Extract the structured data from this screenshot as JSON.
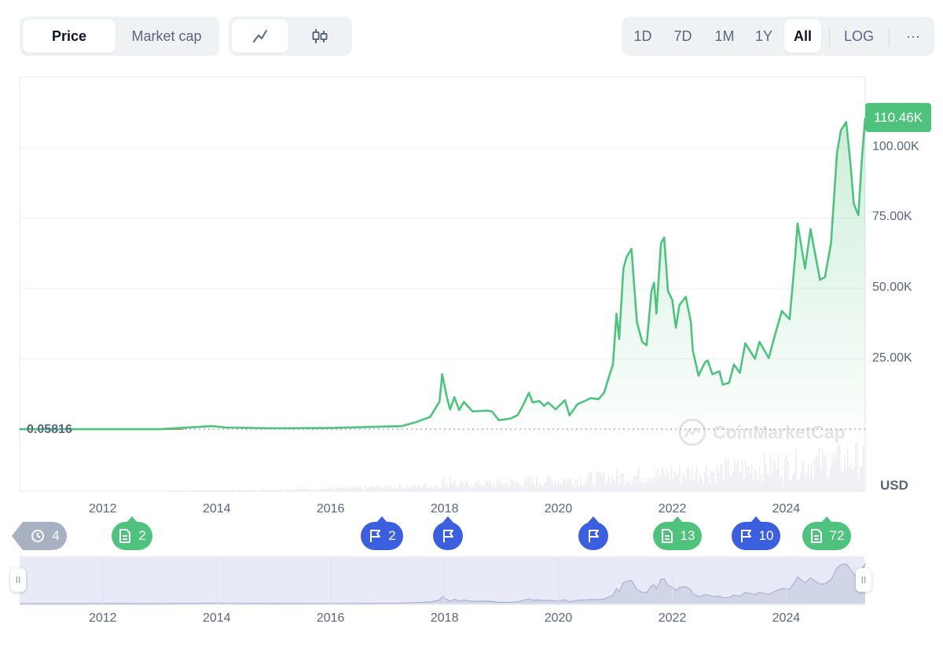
{
  "toolbar": {
    "tabs": [
      {
        "label": "Price",
        "active": true
      },
      {
        "label": "Market cap",
        "active": false
      }
    ],
    "chart_type_icons": [
      "line-chart-icon",
      "candlestick-icon"
    ],
    "ranges": [
      "1D",
      "7D",
      "1M",
      "1Y",
      "All"
    ],
    "active_range": "All",
    "log_label": "LOG",
    "more_label": "···"
  },
  "chart_data": {
    "type": "area",
    "currency_label": "USD",
    "x": [
      "2010-07-17",
      "2010-12-31",
      "2011-06-30",
      "2012-12-31",
      "2013-11-30",
      "2014-03-01",
      "2015-01-01",
      "2016-01-01",
      "2016-12-31",
      "2017-03-31",
      "2017-06-30",
      "2017-09-30",
      "2017-11-30",
      "2017-12-17",
      "2018-01-15",
      "2018-02-06",
      "2018-03-05",
      "2018-04-05",
      "2018-05-05",
      "2018-06-30",
      "2018-09-30",
      "2018-11-01",
      "2018-12-15",
      "2019-03-01",
      "2019-04-15",
      "2019-05-15",
      "2019-06-26",
      "2019-07-20",
      "2019-09-01",
      "2019-10-01",
      "2019-10-27",
      "2019-12-15",
      "2020-02-12",
      "2020-03-13",
      "2020-05-01",
      "2020-07-26",
      "2020-09-15",
      "2020-10-20",
      "2020-11-20",
      "2020-12-16",
      "2021-01-08",
      "2021-01-25",
      "2021-02-21",
      "2021-03-13",
      "2021-04-14",
      "2021-05-19",
      "2021-06-22",
      "2021-07-20",
      "2021-08-20",
      "2021-09-06",
      "2021-09-21",
      "2021-10-20",
      "2021-11-10",
      "2021-12-04",
      "2021-12-31",
      "2022-01-24",
      "2022-02-15",
      "2022-03-28",
      "2022-04-30",
      "2022-05-12",
      "2022-06-18",
      "2022-07-30",
      "2022-08-15",
      "2022-09-15",
      "2022-10-30",
      "2022-11-21",
      "2022-12-31",
      "2023-01-31",
      "2023-03-10",
      "2023-04-14",
      "2023-06-15",
      "2023-07-14",
      "2023-09-11",
      "2023-10-24",
      "2023-12-05",
      "2024-01-23",
      "2024-02-29",
      "2024-03-14",
      "2024-05-01",
      "2024-06-05",
      "2024-08-05",
      "2024-09-06",
      "2024-10-15",
      "2024-11-22",
      "2024-12-17",
      "2025-01-20",
      "2025-02-15",
      "2025-03-10",
      "2025-04-08",
      "2025-05-01",
      "2025-05-22"
    ],
    "series": [
      {
        "values": [
          0.05816,
          0.3,
          15,
          13,
          1100,
          600,
          320,
          430,
          960,
          1080,
          2500,
          4300,
          9800,
          19500,
          11500,
          7000,
          11400,
          6800,
          9700,
          6300,
          6600,
          6300,
          3200,
          3800,
          5000,
          8000,
          12900,
          9500,
          10000,
          8300,
          9500,
          7100,
          10300,
          4900,
          8800,
          11000,
          10700,
          12900,
          18500,
          23000,
          41000,
          32000,
          57000,
          61000,
          64000,
          38000,
          31000,
          29800,
          49000,
          52000,
          41000,
          66000,
          68000,
          49000,
          46000,
          36000,
          44000,
          47000,
          38000,
          28000,
          19000,
          23800,
          24400,
          19500,
          20500,
          15800,
          16500,
          23000,
          20000,
          30500,
          25000,
          31000,
          25200,
          34000,
          42000,
          39000,
          62000,
          73000,
          57000,
          71000,
          53000,
          54000,
          66000,
          98000,
          106000,
          109000,
          95000,
          80000,
          76000,
          96000,
          110460
        ]
      }
    ],
    "y_ticks": [
      {
        "value": 25000,
        "label": "25.00K"
      },
      {
        "value": 50000,
        "label": "50.00K"
      },
      {
        "value": 75000,
        "label": "75.00K"
      },
      {
        "value": 100000,
        "label": "100.00K"
      }
    ],
    "ylim": [
      -22000,
      125000
    ],
    "x_ticks": [
      "2012",
      "2014",
      "2016",
      "2018",
      "2020",
      "2022",
      "2024"
    ],
    "current_price_label": "110.46K",
    "start_price_label": "0.05816",
    "watermark": "CoinMarketCap",
    "line_color": "#4fc37e"
  },
  "events": [
    {
      "kind": "history",
      "count": "4",
      "color": "#a7b1c2"
    },
    {
      "kind": "document",
      "count": "2",
      "color": "#4fc37e"
    },
    {
      "kind": "flag",
      "count": "2",
      "color": "#3c5fe0"
    },
    {
      "kind": "flag",
      "count": "",
      "color": "#3c5fe0"
    },
    {
      "kind": "flag",
      "count": "",
      "color": "#3c5fe0"
    },
    {
      "kind": "document",
      "count": "13",
      "color": "#4fc37e"
    },
    {
      "kind": "flag",
      "count": "10",
      "color": "#3c5fe0"
    },
    {
      "kind": "document",
      "count": "72",
      "color": "#4fc37e"
    }
  ],
  "navigator": {
    "x_ticks": [
      "2012",
      "2014",
      "2016",
      "2018",
      "2020",
      "2022",
      "2024"
    ],
    "handle_glyph": "II"
  }
}
